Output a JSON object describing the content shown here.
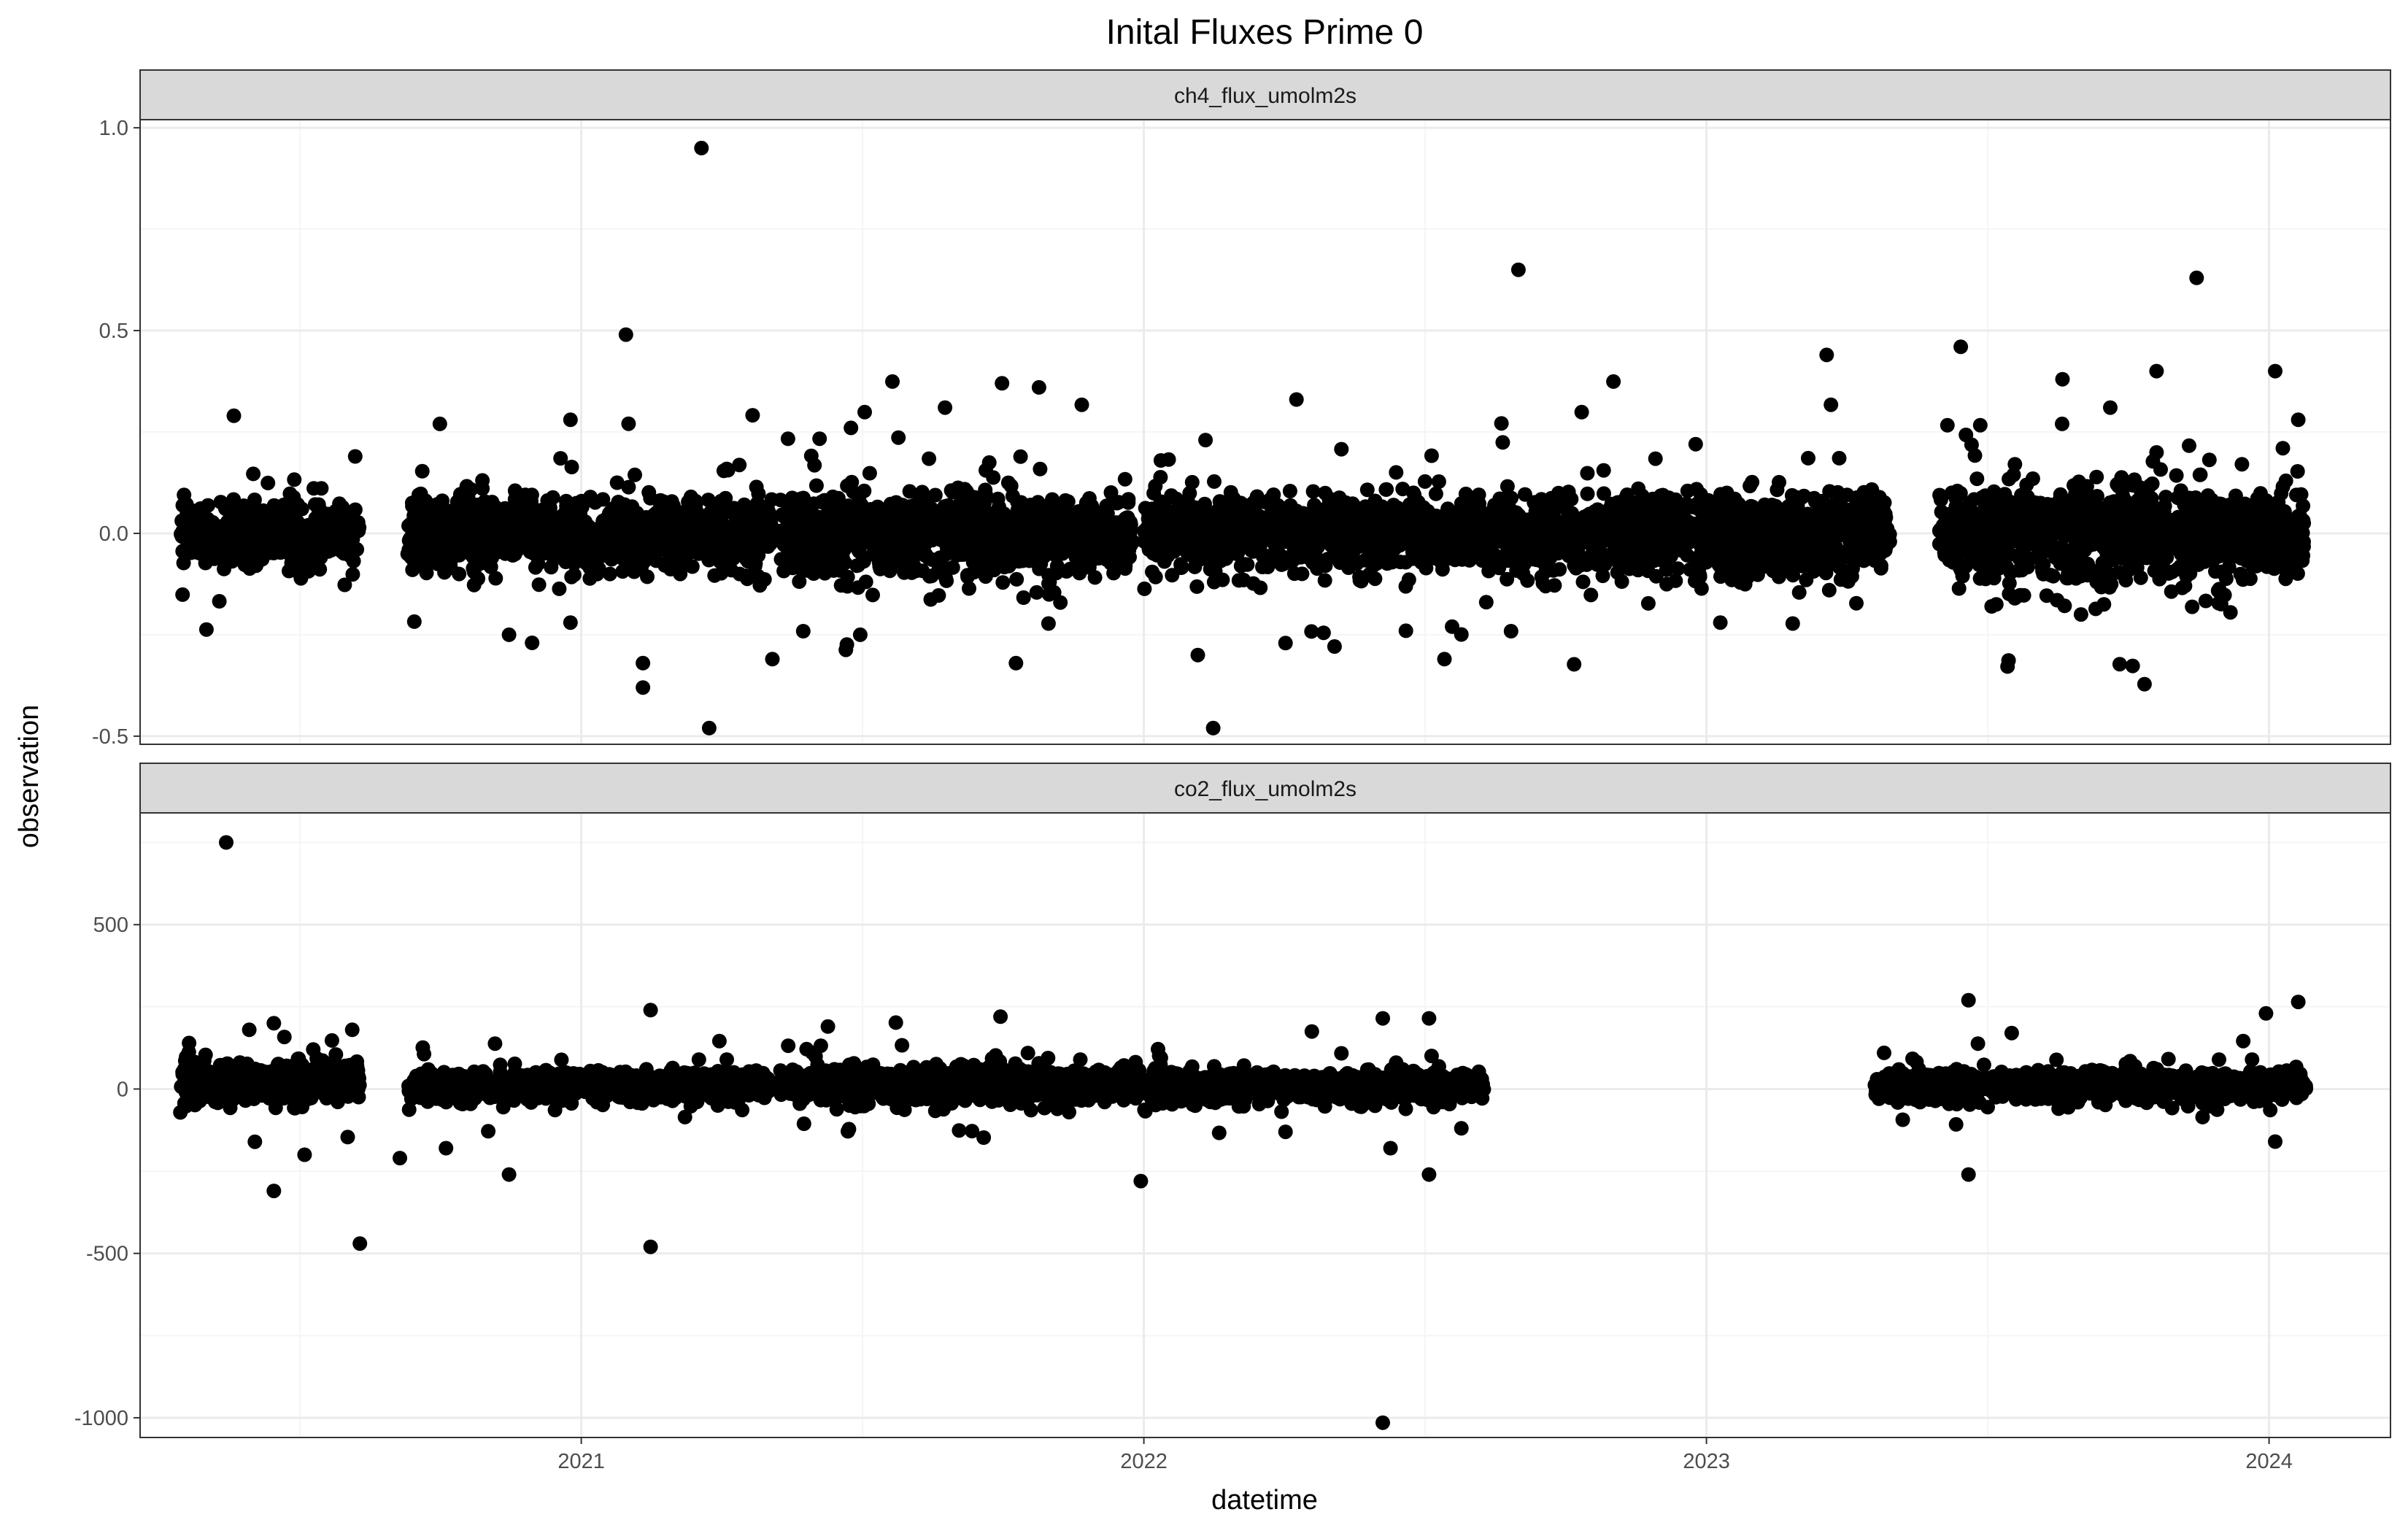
{
  "chart_data": {
    "type": "scatter",
    "title": "Inital Fluxes Prime 0",
    "xlabel": "datetime",
    "ylabel": "observation",
    "x_ticks": [
      "2021",
      "2022",
      "2023",
      "2024"
    ],
    "x_range": [
      "2020-03-20",
      "2024-03-20"
    ],
    "grid": true,
    "colors": {
      "point": "#000000",
      "strip_fill": "#d9d9d9",
      "grid_major": "#ebebeb",
      "grid_minor": "#f5f5f5",
      "panel_border": "#333333"
    },
    "facets": [
      {
        "label": "ch4_flux_umolm2s",
        "ylim": [
          -0.52,
          1.02
        ],
        "y_ticks": [
          -0.5,
          0.0,
          0.5,
          1.0
        ],
        "y_tick_labels": [
          "-0.5",
          "0.0",
          "0.5",
          "1.0"
        ],
        "clusters": [
          {
            "start": "2020-04-15",
            "end": "2020-08-10",
            "center": 0.0,
            "spread": 0.1
          },
          {
            "start": "2020-09-10",
            "end": "2021-05-05",
            "center": 0.0,
            "spread": 0.12
          },
          {
            "start": "2021-05-10",
            "end": "2021-12-25",
            "center": 0.0,
            "spread": 0.14
          },
          {
            "start": "2022-01-01",
            "end": "2022-08-10",
            "center": 0.0,
            "spread": 0.12
          },
          {
            "start": "2022-08-10",
            "end": "2023-04-30",
            "center": 0.0,
            "spread": 0.14
          },
          {
            "start": "2023-06-01",
            "end": "2024-01-25",
            "center": 0.0,
            "spread": 0.16
          }
        ],
        "outliers": [
          {
            "x": "2021-03-20",
            "y": 0.95
          },
          {
            "x": "2022-09-01",
            "y": 0.65
          },
          {
            "x": "2023-11-15",
            "y": 0.63
          },
          {
            "x": "2021-01-30",
            "y": 0.49
          },
          {
            "x": "2023-03-20",
            "y": 0.44
          },
          {
            "x": "2023-06-15",
            "y": 0.46
          },
          {
            "x": "2024-01-05",
            "y": 0.4
          },
          {
            "x": "2023-10-20",
            "y": 0.4
          },
          {
            "x": "2023-08-20",
            "y": 0.38
          },
          {
            "x": "2021-10-01",
            "y": 0.37
          },
          {
            "x": "2021-10-25",
            "y": 0.36
          },
          {
            "x": "2022-04-10",
            "y": 0.33
          },
          {
            "x": "2021-08-25",
            "y": 0.31
          },
          {
            "x": "2023-09-20",
            "y": 0.31
          },
          {
            "x": "2020-05-20",
            "y": 0.29
          },
          {
            "x": "2020-12-25",
            "y": 0.28
          },
          {
            "x": "2024-01-20",
            "y": 0.28
          },
          {
            "x": "2020-10-01",
            "y": 0.27
          },
          {
            "x": "2021-06-25",
            "y": 0.26
          },
          {
            "x": "2024-01-10",
            "y": 0.21
          },
          {
            "x": "2022-02-10",
            "y": 0.23
          },
          {
            "x": "2022-12-25",
            "y": 0.22
          },
          {
            "x": "2021-02-10",
            "y": -0.32
          },
          {
            "x": "2021-02-10",
            "y": -0.38
          },
          {
            "x": "2021-03-25",
            "y": -0.48
          },
          {
            "x": "2021-05-05",
            "y": -0.31
          },
          {
            "x": "2021-10-10",
            "y": -0.32
          },
          {
            "x": "2022-02-05",
            "y": -0.3
          },
          {
            "x": "2022-02-15",
            "y": -0.48
          },
          {
            "x": "2022-07-15",
            "y": -0.31
          },
          {
            "x": "2020-11-15",
            "y": -0.25
          },
          {
            "x": "2020-11-30",
            "y": -0.27
          },
          {
            "x": "2020-12-25",
            "y": -0.22
          },
          {
            "x": "2021-07-01",
            "y": -0.25
          },
          {
            "x": "2022-06-20",
            "y": -0.24
          },
          {
            "x": "2022-07-20",
            "y": -0.23
          },
          {
            "x": "2023-01-10",
            "y": -0.22
          },
          {
            "x": "2023-09-01",
            "y": -0.2
          },
          {
            "x": "2023-07-05",
            "y": -0.18
          }
        ]
      },
      {
        "label": "co2_flux_umolm2s",
        "ylim": [
          -1060,
          840
        ],
        "y_ticks": [
          -1000,
          -500,
          0,
          500
        ],
        "y_tick_labels": [
          "-1000",
          "-500",
          "0",
          "500"
        ],
        "clusters": [
          {
            "start": "2020-04-15",
            "end": "2020-08-10",
            "center": 20.0,
            "spread": 80
          },
          {
            "start": "2020-09-10",
            "end": "2021-05-05",
            "center": 10.0,
            "spread": 60
          },
          {
            "start": "2021-05-10",
            "end": "2022-01-01",
            "center": 15.0,
            "spread": 70
          },
          {
            "start": "2022-01-01",
            "end": "2022-08-10",
            "center": 5.0,
            "spread": 60
          },
          {
            "start": "2023-04-20",
            "end": "2024-01-25",
            "center": 10.0,
            "spread": 60
          }
        ],
        "outliers": [
          {
            "x": "2020-05-15",
            "y": 750
          },
          {
            "x": "2020-06-15",
            "y": 200
          },
          {
            "x": "2020-08-05",
            "y": 180
          },
          {
            "x": "2021-02-15",
            "y": 240
          },
          {
            "x": "2021-09-30",
            "y": 220
          },
          {
            "x": "2023-06-20",
            "y": 270
          },
          {
            "x": "2024-01-20",
            "y": 265
          },
          {
            "x": "2023-12-30",
            "y": 230
          },
          {
            "x": "2022-07-05",
            "y": 215
          },
          {
            "x": "2022-06-05",
            "y": 215
          },
          {
            "x": "2022-04-20",
            "y": 175
          },
          {
            "x": "2021-06-10",
            "y": 190
          },
          {
            "x": "2020-05-30",
            "y": 180
          },
          {
            "x": "2020-06-15",
            "y": -310
          },
          {
            "x": "2020-08-10",
            "y": -470
          },
          {
            "x": "2021-02-15",
            "y": -480
          },
          {
            "x": "2021-12-30",
            "y": -280
          },
          {
            "x": "2022-06-05",
            "y": -1015
          },
          {
            "x": "2022-07-05",
            "y": -260
          },
          {
            "x": "2023-06-20",
            "y": -260
          },
          {
            "x": "2020-11-15",
            "y": -260
          },
          {
            "x": "2020-09-05",
            "y": -210
          },
          {
            "x": "2020-07-05",
            "y": -200
          },
          {
            "x": "2020-10-05",
            "y": -180
          },
          {
            "x": "2022-06-10",
            "y": -180
          },
          {
            "x": "2024-01-05",
            "y": -160
          }
        ]
      }
    ]
  }
}
